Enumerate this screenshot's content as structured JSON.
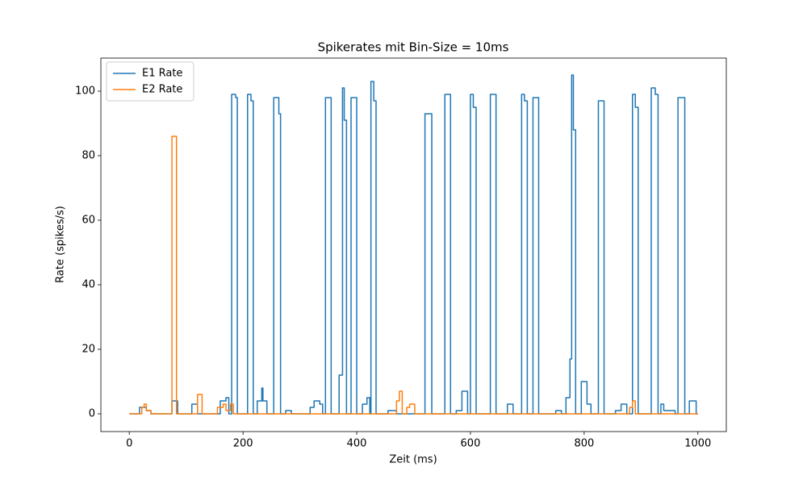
{
  "chart_data": {
    "type": "line",
    "title": "Spikerates mit Bin-Size = 10ms",
    "x_label": "Zeit (ms)",
    "y_label": "Rate (spikes/s)",
    "xlim": [
      -50,
      1050
    ],
    "ylim": [
      -5.5,
      110.25
    ],
    "xticks": [
      0,
      200,
      400,
      600,
      800,
      1000
    ],
    "yticks": [
      0,
      20,
      40,
      60,
      80,
      100
    ],
    "legend": "upper left",
    "series": [
      {
        "name": "E1 Rate",
        "color": "#1f77b4",
        "x": [
          0,
          18,
          18,
          30,
          30,
          38,
          38,
          75,
          75,
          85,
          85,
          110,
          110,
          120,
          120,
          160,
          160,
          170,
          170,
          175,
          175,
          180,
          180,
          187,
          187,
          190,
          190,
          208,
          208,
          214,
          214,
          218,
          218,
          225,
          225,
          233,
          233,
          235,
          235,
          242,
          242,
          254,
          254,
          263,
          263,
          266,
          266,
          275,
          275,
          285,
          285,
          318,
          318,
          325,
          325,
          335,
          335,
          340,
          340,
          345,
          345,
          355,
          355,
          369,
          369,
          375,
          375,
          378,
          378,
          382,
          382,
          390,
          390,
          400,
          400,
          410,
          410,
          418,
          418,
          423,
          423,
          425,
          425,
          430,
          430,
          434,
          434,
          455,
          455,
          470,
          470,
          520,
          520,
          532,
          532,
          555,
          555,
          565,
          565,
          575,
          575,
          585,
          585,
          595,
          595,
          600,
          600,
          605,
          605,
          610,
          610,
          635,
          635,
          645,
          645,
          665,
          665,
          675,
          675,
          690,
          690,
          695,
          695,
          700,
          700,
          710,
          710,
          720,
          720,
          750,
          750,
          760,
          760,
          768,
          768,
          775,
          775,
          778,
          778,
          781,
          781,
          785,
          785,
          795,
          795,
          805,
          805,
          812,
          812,
          825,
          825,
          835,
          835,
          855,
          855,
          865,
          865,
          875,
          875,
          885,
          885,
          890,
          890,
          895,
          895,
          918,
          918,
          925,
          925,
          930,
          930,
          935,
          935,
          940,
          940,
          960,
          960,
          965,
          965,
          977,
          977,
          985,
          985,
          997,
          997,
          1000
        ],
        "values": [
          0,
          0,
          2,
          2,
          1,
          1,
          0,
          0,
          4,
          4,
          0,
          0,
          3,
          3,
          0,
          0,
          4,
          4,
          5,
          5,
          0,
          0,
          99,
          99,
          98,
          98,
          0,
          0,
          99,
          99,
          97,
          97,
          0,
          0,
          4,
          4,
          8,
          8,
          4,
          4,
          0,
          0,
          98,
          98,
          93,
          93,
          0,
          0,
          1,
          1,
          0,
          0,
          2,
          2,
          4,
          4,
          3,
          3,
          0,
          0,
          98,
          98,
          0,
          0,
          12,
          12,
          101,
          101,
          91,
          91,
          0,
          0,
          98,
          98,
          0,
          0,
          3,
          3,
          5,
          5,
          0,
          0,
          103,
          103,
          97,
          97,
          0,
          0,
          1,
          1,
          0,
          0,
          93,
          93,
          0,
          0,
          99,
          99,
          0,
          0,
          1,
          1,
          7,
          7,
          0,
          0,
          99,
          99,
          95,
          95,
          0,
          0,
          99,
          99,
          0,
          0,
          3,
          3,
          0,
          0,
          99,
          99,
          97,
          97,
          0,
          0,
          98,
          98,
          0,
          0,
          1,
          1,
          0,
          0,
          5,
          5,
          17,
          17,
          105,
          105,
          88,
          88,
          0,
          0,
          10,
          10,
          3,
          3,
          0,
          0,
          97,
          97,
          0,
          0,
          1,
          1,
          3,
          3,
          0,
          0,
          99,
          99,
          95,
          95,
          0,
          0,
          101,
          101,
          99,
          99,
          0,
          0,
          3,
          3,
          1,
          1,
          0,
          0,
          98,
          98,
          0,
          0,
          4,
          4,
          0,
          0
        ]
      },
      {
        "name": "E2 Rate",
        "color": "#ff7f0e",
        "x": [
          0,
          22,
          22,
          26,
          26,
          30,
          30,
          38,
          38,
          75,
          75,
          83,
          83,
          120,
          120,
          128,
          128,
          155,
          155,
          165,
          165,
          170,
          170,
          178,
          178,
          183,
          183,
          470,
          470,
          475,
          475,
          480,
          480,
          488,
          488,
          493,
          493,
          502,
          502,
          880,
          880,
          885,
          885,
          890,
          890,
          1000
        ],
        "values": [
          0,
          0,
          2,
          2,
          3,
          3,
          1,
          1,
          0,
          0,
          86,
          86,
          0,
          0,
          6,
          6,
          0,
          0,
          2,
          2,
          3,
          3,
          1,
          1,
          3,
          3,
          0,
          0,
          4,
          4,
          7,
          7,
          0,
          0,
          2,
          2,
          3,
          3,
          0,
          0,
          2,
          2,
          4,
          4,
          0,
          0
        ]
      }
    ]
  }
}
